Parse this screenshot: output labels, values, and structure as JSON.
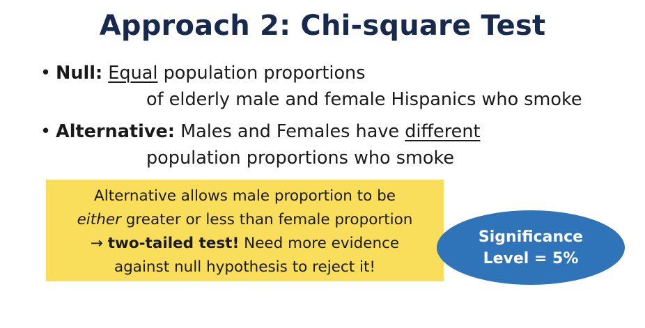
{
  "title": "Approach 2: Chi-square Test",
  "bullets": [
    {
      "marker": "•",
      "term": "Null:",
      "emphasis": "Equal",
      "rest": "population proportions",
      "continuation": "of elderly male and female Hispanics who smoke"
    },
    {
      "marker": "•",
      "term": "Alternative:",
      "pre": "Males and Females have",
      "emphasis": "different",
      "continuation": "population proportions who smoke"
    }
  ],
  "callout": {
    "line1": "Alternative allows male proportion to be",
    "line2_italic": "either",
    "line2_rest": "greater or less than female proportion",
    "line3_arrow": "→",
    "line3_bold": "two-tailed test!",
    "line3_rest": "Need more evidence",
    "line4": "against null hypothesis to reject it!"
  },
  "significance": {
    "line1": "Significance",
    "line2": "Level = 5%"
  },
  "colors": {
    "title": "#172a4d",
    "callout_bg": "#f8de5a",
    "ellipse_bg": "#2f73b8"
  }
}
